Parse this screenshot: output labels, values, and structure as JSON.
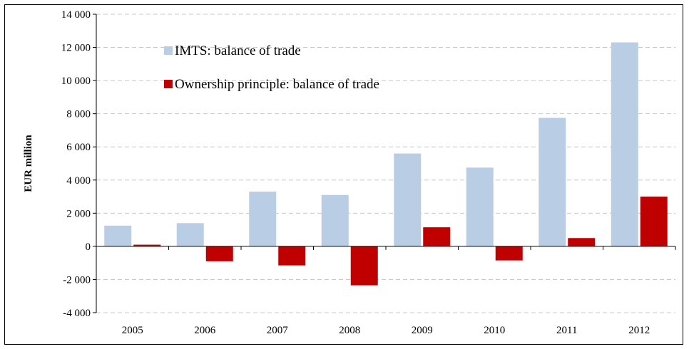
{
  "colors": {
    "imts": "#b9cde5",
    "ownership": "#c00000",
    "grid": "#c8c8c8",
    "axis": "#000000"
  },
  "chart_data": {
    "type": "bar",
    "title": "",
    "xlabel": "",
    "ylabel": "EUR million",
    "ylim": [
      -4000,
      14000
    ],
    "yticks": [
      -4000,
      -2000,
      0,
      2000,
      4000,
      6000,
      8000,
      10000,
      12000,
      14000
    ],
    "ytick_labels": [
      "-4 000",
      "-2 000",
      "0",
      "2 000",
      "4 000",
      "6 000",
      "8 000",
      "10 000",
      "12 000",
      "14 000"
    ],
    "grid": true,
    "legend_position": "top-left",
    "categories": [
      "2005",
      "2006",
      "2007",
      "2008",
      "2009",
      "2010",
      "2011",
      "2012"
    ],
    "series": [
      {
        "name": "IMTS: balance of trade",
        "color": "#b9cde5",
        "values": [
          1250,
          1400,
          3300,
          3100,
          5600,
          4750,
          7750,
          12300
        ]
      },
      {
        "name": "Ownership principle: balance of trade",
        "color": "#c00000",
        "values": [
          100,
          -900,
          -1150,
          -2350,
          1150,
          -850,
          500,
          3000
        ]
      }
    ]
  }
}
